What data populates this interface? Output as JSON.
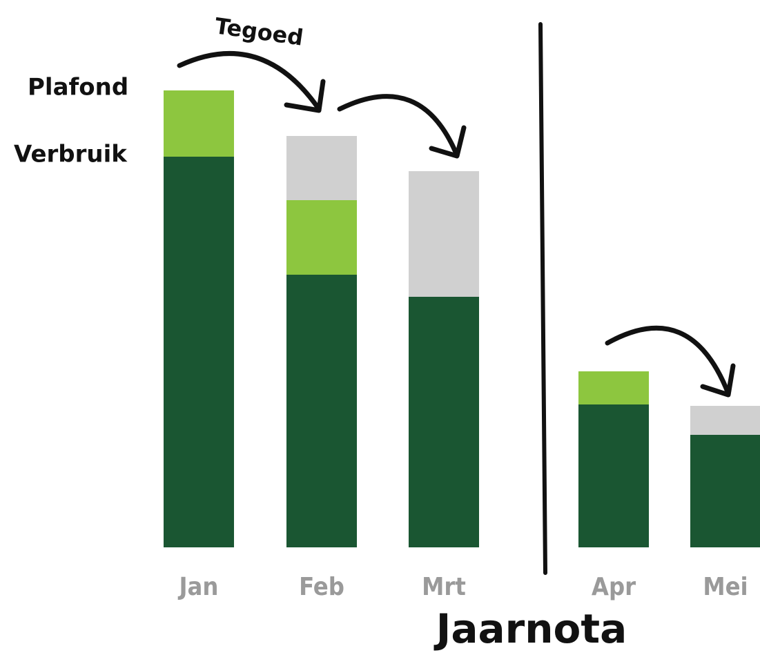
{
  "chart_data": {
    "type": "stacked_bar",
    "categories": [
      "Jan",
      "Feb",
      "Mrt",
      "Apr",
      "Mei"
    ],
    "series": [
      {
        "name": "Verbruik",
        "color": "#1a5632",
        "values": [
          566,
          395,
          363,
          207,
          163
        ]
      },
      {
        "name": "Plafond",
        "color": "#8dc63f",
        "values": [
          96,
          108,
          null,
          48,
          null
        ]
      },
      {
        "name": "Tegoed",
        "color": "#d0d0d0",
        "values": [
          null,
          93,
          182,
          null,
          42
        ]
      }
    ],
    "annotation": "Jaarnota"
  }
}
